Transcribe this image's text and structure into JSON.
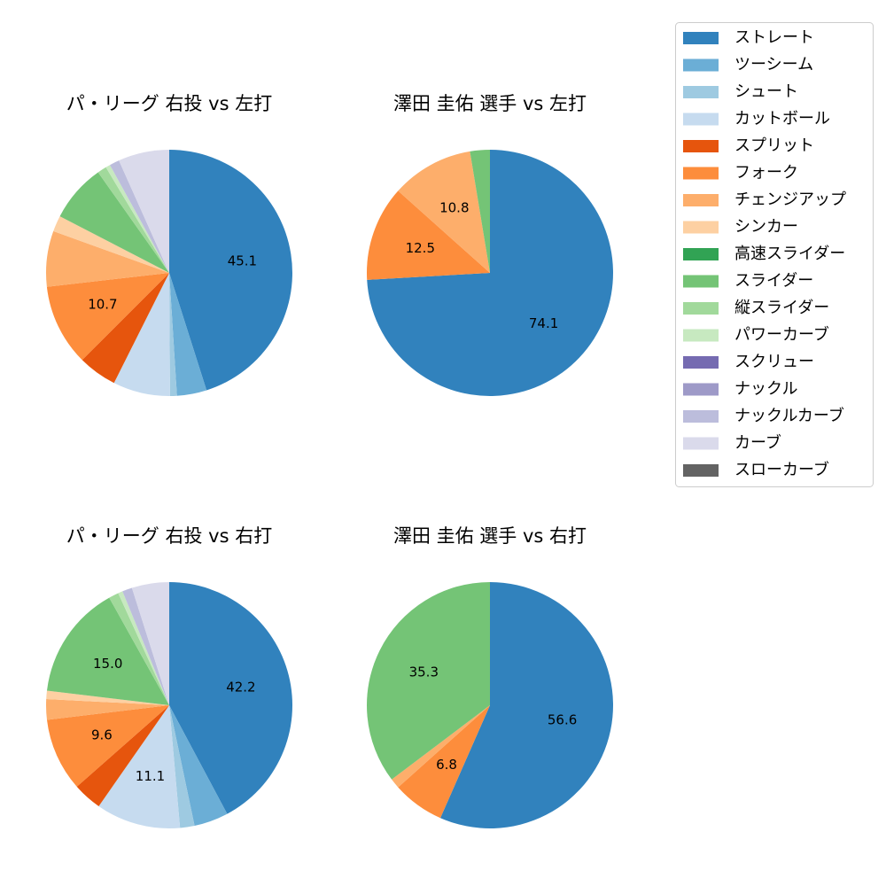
{
  "chart_data": {
    "type": "pie",
    "legend_position": "top-right",
    "legend": [
      {
        "name": "ストレート",
        "color": "#3182bd"
      },
      {
        "name": "ツーシーム",
        "color": "#6baed6"
      },
      {
        "name": "シュート",
        "color": "#9ecae1"
      },
      {
        "name": "カットボール",
        "color": "#c6dbef"
      },
      {
        "name": "スプリット",
        "color": "#e6550d"
      },
      {
        "name": "フォーク",
        "color": "#fd8d3c"
      },
      {
        "name": "チェンジアップ",
        "color": "#fdae6b"
      },
      {
        "name": "シンカー",
        "color": "#fdd0a2"
      },
      {
        "name": "高速スライダー",
        "color": "#31a354"
      },
      {
        "name": "スライダー",
        "color": "#74c476"
      },
      {
        "name": "縦スライダー",
        "color": "#a1d99b"
      },
      {
        "name": "パワーカーブ",
        "color": "#c7e9c0"
      },
      {
        "name": "スクリュー",
        "color": "#756bb1"
      },
      {
        "name": "ナックル",
        "color": "#9e9ac8"
      },
      {
        "name": "ナックルカーブ",
        "color": "#bcbddc"
      },
      {
        "name": "カーブ",
        "color": "#dadaeb"
      },
      {
        "name": "スローカーブ",
        "color": "#636363"
      }
    ],
    "charts": [
      {
        "title": "パ・リーグ 右投 vs 左打",
        "slices": [
          {
            "name": "ストレート",
            "value": 45.1,
            "label": "45.1"
          },
          {
            "name": "ツーシーム",
            "value": 3.9,
            "label": ""
          },
          {
            "name": "シュート",
            "value": 0.9,
            "label": ""
          },
          {
            "name": "カットボール",
            "value": 7.5,
            "label": ""
          },
          {
            "name": "スプリット",
            "value": 5.1,
            "label": ""
          },
          {
            "name": "フォーク",
            "value": 10.7,
            "label": "10.7"
          },
          {
            "name": "チェンジアップ",
            "value": 7.3,
            "label": ""
          },
          {
            "name": "シンカー",
            "value": 2.1,
            "label": ""
          },
          {
            "name": "スライダー",
            "value": 7.6,
            "label": ""
          },
          {
            "name": "縦スライダー",
            "value": 1.2,
            "label": ""
          },
          {
            "name": "パワーカーブ",
            "value": 0.6,
            "label": ""
          },
          {
            "name": "ナックルカーブ",
            "value": 1.3,
            "label": ""
          },
          {
            "name": "カーブ",
            "value": 6.7,
            "label": ""
          }
        ]
      },
      {
        "title": "澤田 圭佑 選手 vs 左打",
        "slices": [
          {
            "name": "ストレート",
            "value": 74.1,
            "label": "74.1"
          },
          {
            "name": "フォーク",
            "value": 12.5,
            "label": "12.5"
          },
          {
            "name": "チェンジアップ",
            "value": 10.8,
            "label": "10.8"
          },
          {
            "name": "スライダー",
            "value": 2.6,
            "label": ""
          }
        ]
      },
      {
        "title": "パ・リーグ 右投 vs 右打",
        "slices": [
          {
            "name": "ストレート",
            "value": 42.2,
            "label": "42.2"
          },
          {
            "name": "ツーシーム",
            "value": 4.5,
            "label": ""
          },
          {
            "name": "シュート",
            "value": 1.9,
            "label": ""
          },
          {
            "name": "カットボール",
            "value": 11.1,
            "label": "11.1"
          },
          {
            "name": "スプリット",
            "value": 3.8,
            "label": ""
          },
          {
            "name": "フォーク",
            "value": 9.6,
            "label": "9.6"
          },
          {
            "name": "チェンジアップ",
            "value": 2.7,
            "label": ""
          },
          {
            "name": "シンカー",
            "value": 1.1,
            "label": ""
          },
          {
            "name": "スライダー",
            "value": 15.0,
            "label": "15.0"
          },
          {
            "name": "縦スライダー",
            "value": 1.3,
            "label": ""
          },
          {
            "name": "パワーカーブ",
            "value": 0.6,
            "label": ""
          },
          {
            "name": "ナックルカーブ",
            "value": 1.3,
            "label": ""
          },
          {
            "name": "カーブ",
            "value": 4.9,
            "label": ""
          }
        ]
      },
      {
        "title": "澤田 圭佑 選手 vs 右打",
        "slices": [
          {
            "name": "ストレート",
            "value": 56.6,
            "label": "56.6"
          },
          {
            "name": "フォーク",
            "value": 6.8,
            "label": "6.8"
          },
          {
            "name": "チェンジアップ",
            "value": 1.3,
            "label": ""
          },
          {
            "name": "スライダー",
            "value": 35.3,
            "label": "35.3"
          }
        ]
      }
    ]
  }
}
